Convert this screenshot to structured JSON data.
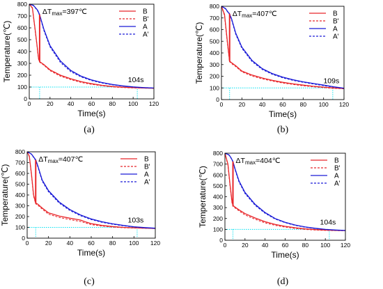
{
  "figure": {
    "colors": {
      "B": "#e8262a",
      "A": "#1a1ad6",
      "guide": "#00e0f0",
      "axis": "#000000"
    }
  },
  "chart_data": [
    {
      "type": "line",
      "caption": "(a)",
      "xlabel": "Time(s)",
      "ylabel": "Temperature(℃)",
      "xlim": [
        0,
        120
      ],
      "ylim": [
        0,
        800
      ],
      "xticks": [
        0,
        20,
        40,
        60,
        80,
        100,
        120
      ],
      "yticks": [
        0,
        100,
        200,
        300,
        400,
        500,
        600,
        700,
        800
      ],
      "annotation_prefix": "ΔT",
      "annotation_sub": "max",
      "annotation_value": "=397℃",
      "end_time_label": "104s",
      "guide_y": 100,
      "guide_x": [
        10,
        104
      ],
      "legend_position": "top-right",
      "series": [
        {
          "name": "B",
          "style": "solid",
          "color": "#e8262a",
          "x": [
            0,
            3,
            6,
            9,
            10,
            14,
            20,
            30,
            40,
            50,
            60,
            70,
            80,
            90,
            100,
            110,
            120
          ],
          "y": [
            800,
            770,
            560,
            340,
            315,
            290,
            245,
            200,
            170,
            145,
            128,
            115,
            105,
            99,
            95,
            92,
            90
          ]
        },
        {
          "name": "B'",
          "style": "dashed",
          "color": "#e8262a",
          "x": [
            0,
            3,
            6,
            9,
            10,
            14,
            20,
            30,
            40,
            50,
            60,
            70,
            80,
            90,
            100,
            110,
            120
          ],
          "y": [
            800,
            765,
            550,
            335,
            310,
            285,
            238,
            192,
            163,
            139,
            123,
            111,
            102,
            96,
            93,
            91,
            90
          ]
        },
        {
          "name": "A",
          "style": "solid",
          "color": "#1a1ad6",
          "x": [
            0,
            4,
            8,
            10,
            14,
            20,
            30,
            40,
            50,
            60,
            70,
            80,
            90,
            100,
            110,
            120
          ],
          "y": [
            800,
            790,
            750,
            712,
            590,
            450,
            320,
            240,
            192,
            160,
            138,
            122,
            110,
            101,
            95,
            92
          ]
        },
        {
          "name": "A'",
          "style": "dashed",
          "color": "#1a1ad6",
          "x": [
            0,
            4,
            8,
            10,
            14,
            20,
            30,
            40,
            50,
            60,
            70,
            80,
            90,
            100,
            110,
            120
          ],
          "y": [
            800,
            788,
            745,
            705,
            580,
            440,
            308,
            230,
            185,
            155,
            134,
            119,
            108,
            100,
            95,
            92
          ]
        }
      ]
    },
    {
      "type": "line",
      "caption": "(b)",
      "xlabel": "Time(s)",
      "ylabel": "Temperature(℃)",
      "xlim": [
        0,
        120
      ],
      "ylim": [
        0,
        800
      ],
      "xticks": [
        0,
        20,
        40,
        60,
        80,
        100,
        120
      ],
      "yticks": [
        0,
        100,
        200,
        300,
        400,
        500,
        600,
        700,
        800
      ],
      "annotation_prefix": "ΔT",
      "annotation_sub": "max",
      "annotation_value": "=407℃",
      "end_time_label": "109s",
      "guide_y": 100,
      "guide_x": [
        8,
        109
      ],
      "legend_position": "top-right",
      "series": [
        {
          "name": "B",
          "style": "solid",
          "color": "#e8262a",
          "x": [
            0,
            3,
            6,
            8,
            10,
            14,
            20,
            30,
            40,
            50,
            60,
            70,
            80,
            90,
            100,
            110,
            120
          ],
          "y": [
            800,
            730,
            480,
            330,
            315,
            290,
            245,
            210,
            185,
            165,
            148,
            135,
            124,
            114,
            107,
            100,
            95
          ]
        },
        {
          "name": "B'",
          "style": "dashed",
          "color": "#e8262a",
          "x": [
            0,
            3,
            6,
            8,
            10,
            14,
            20,
            30,
            40,
            50,
            60,
            70,
            80,
            90,
            100,
            110,
            120
          ],
          "y": [
            800,
            720,
            470,
            325,
            308,
            283,
            238,
            202,
            178,
            158,
            142,
            130,
            119,
            110,
            103,
            97,
            93
          ]
        },
        {
          "name": "A",
          "style": "solid",
          "color": "#1a1ad6",
          "x": [
            0,
            4,
            6,
            8,
            10,
            14,
            20,
            30,
            40,
            50,
            60,
            70,
            80,
            90,
            100,
            110,
            120
          ],
          "y": [
            800,
            780,
            755,
            735,
            690,
            570,
            450,
            335,
            265,
            222,
            192,
            170,
            152,
            138,
            124,
            110,
            98
          ]
        },
        {
          "name": "A'",
          "style": "dashed",
          "color": "#1a1ad6",
          "x": [
            0,
            4,
            6,
            8,
            10,
            14,
            20,
            30,
            40,
            50,
            60,
            70,
            80,
            90,
            100,
            110,
            120
          ],
          "y": [
            800,
            778,
            752,
            730,
            682,
            560,
            440,
            326,
            258,
            216,
            187,
            165,
            148,
            134,
            120,
            107,
            96
          ]
        }
      ]
    },
    {
      "type": "line",
      "caption": "(c)",
      "xlabel": "Time(s)",
      "ylabel": "Temperature(℃)",
      "xlim": [
        0,
        120
      ],
      "ylim": [
        0,
        800
      ],
      "xticks": [
        0,
        20,
        40,
        60,
        80,
        100,
        120
      ],
      "yticks": [
        0,
        100,
        200,
        300,
        400,
        500,
        600,
        700,
        800
      ],
      "annotation_prefix": "ΔT",
      "annotation_sub": "max",
      "annotation_value": "=407℃",
      "end_time_label": "103s",
      "guide_y": 100,
      "guide_x": [
        8,
        103
      ],
      "legend_position": "top-right",
      "series": [
        {
          "name": "B",
          "style": "solid",
          "color": "#e8262a",
          "x": [
            0,
            2,
            4,
            6,
            8,
            10,
            14,
            20,
            30,
            40,
            50,
            55,
            60,
            70,
            80,
            90,
            100,
            110,
            120
          ],
          "y": [
            800,
            760,
            600,
            400,
            325,
            315,
            280,
            235,
            205,
            185,
            168,
            150,
            135,
            118,
            108,
            100,
            96,
            93,
            90
          ]
        },
        {
          "name": "B'",
          "style": "dashed",
          "color": "#e8262a",
          "x": [
            0,
            2,
            4,
            6,
            8,
            10,
            14,
            20,
            30,
            40,
            50,
            55,
            60,
            70,
            80,
            90,
            100,
            110,
            120
          ],
          "y": [
            800,
            755,
            590,
            390,
            318,
            305,
            270,
            222,
            192,
            172,
            155,
            140,
            126,
            112,
            103,
            97,
            94,
            92,
            90
          ]
        },
        {
          "name": "A",
          "style": "solid",
          "color": "#1a1ad6",
          "x": [
            0,
            4,
            8,
            10,
            14,
            20,
            30,
            40,
            50,
            60,
            70,
            80,
            90,
            100,
            110,
            120
          ],
          "y": [
            800,
            780,
            725,
            670,
            540,
            440,
            335,
            265,
            215,
            178,
            152,
            133,
            118,
            106,
            98,
            92
          ]
        },
        {
          "name": "A'",
          "style": "dashed",
          "color": "#1a1ad6",
          "x": [
            0,
            4,
            8,
            10,
            14,
            20,
            30,
            40,
            50,
            60,
            70,
            80,
            90,
            100,
            110,
            120
          ],
          "y": [
            800,
            778,
            720,
            662,
            530,
            430,
            325,
            257,
            208,
            172,
            147,
            129,
            115,
            104,
            96,
            91
          ]
        }
      ]
    },
    {
      "type": "line",
      "caption": "(d)",
      "xlabel": "Time(s)",
      "ylabel": "Temperature(℃)",
      "xlim": [
        0,
        120
      ],
      "ylim": [
        0,
        800
      ],
      "xticks": [
        0,
        20,
        40,
        60,
        80,
        100,
        120
      ],
      "yticks": [
        0,
        100,
        200,
        300,
        400,
        500,
        600,
        700,
        800
      ],
      "annotation_prefix": "ΔT",
      "annotation_sub": "max",
      "annotation_value": "=404℃",
      "end_time_label": "104s",
      "guide_y": 100,
      "guide_x": [
        8,
        104
      ],
      "legend_position": "top-right",
      "series": [
        {
          "name": "B",
          "style": "solid",
          "color": "#e8262a",
          "x": [
            0,
            3,
            5,
            7,
            8,
            10,
            14,
            20,
            30,
            40,
            50,
            60,
            70,
            80,
            90,
            100,
            110,
            120
          ],
          "y": [
            800,
            700,
            520,
            355,
            320,
            305,
            280,
            245,
            205,
            170,
            145,
            128,
            115,
            105,
            98,
            94,
            91,
            89
          ]
        },
        {
          "name": "B'",
          "style": "dashed",
          "color": "#e8262a",
          "x": [
            0,
            3,
            5,
            7,
            8,
            10,
            14,
            20,
            30,
            40,
            50,
            60,
            70,
            80,
            90,
            100,
            110,
            120
          ],
          "y": [
            800,
            690,
            510,
            345,
            312,
            298,
            270,
            233,
            193,
            160,
            137,
            121,
            109,
            100,
            94,
            91,
            89,
            88
          ]
        },
        {
          "name": "A",
          "style": "solid",
          "color": "#1a1ad6",
          "x": [
            0,
            4,
            6,
            8,
            10,
            14,
            20,
            30,
            40,
            50,
            60,
            70,
            80,
            90,
            100,
            110,
            120
          ],
          "y": [
            800,
            785,
            760,
            724,
            660,
            545,
            440,
            330,
            255,
            200,
            165,
            140,
            122,
            110,
            100,
            94,
            90
          ]
        },
        {
          "name": "A'",
          "style": "dashed",
          "color": "#1a1ad6",
          "x": [
            0,
            4,
            6,
            8,
            10,
            14,
            20,
            30,
            40,
            50,
            60,
            70,
            80,
            90,
            100,
            110,
            120
          ],
          "y": [
            800,
            783,
            757,
            720,
            652,
            535,
            430,
            321,
            248,
            195,
            161,
            137,
            120,
            108,
            99,
            93,
            89
          ]
        }
      ]
    }
  ]
}
